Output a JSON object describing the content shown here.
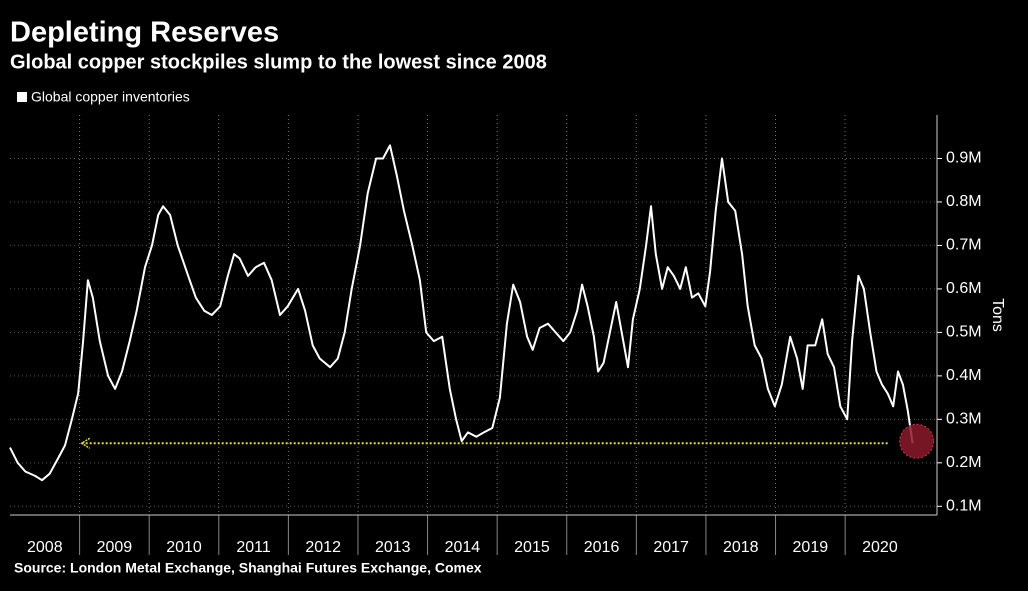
{
  "chart_data": {
    "type": "line",
    "title": "Depleting Reserves",
    "subtitle": "Global copper stockpiles slump to the lowest since 2008",
    "y_label": "Tons",
    "source": "Source: London Metal Exchange, Shanghai Futures Exchange, Comex",
    "xlim": [
      2008,
      2021.32
    ],
    "xticks": [
      {
        "value": 2008,
        "label": "2008"
      },
      {
        "value": 2009,
        "label": "2009"
      },
      {
        "value": 2010,
        "label": "2010"
      },
      {
        "value": 2011,
        "label": "2011"
      },
      {
        "value": 2012,
        "label": "2012"
      },
      {
        "value": 2013,
        "label": "2013"
      },
      {
        "value": 2014,
        "label": "2014"
      },
      {
        "value": 2015,
        "label": "2015"
      },
      {
        "value": 2016,
        "label": "2016"
      },
      {
        "value": 2017,
        "label": "2017"
      },
      {
        "value": 2018,
        "label": "2018"
      },
      {
        "value": 2019,
        "label": "2019"
      },
      {
        "value": 2020,
        "label": "2020"
      }
    ],
    "ylim": [
      80000,
      1000000
    ],
    "yticks": [
      {
        "value": 100000,
        "label": "0.1M"
      },
      {
        "value": 200000,
        "label": "0.2M"
      },
      {
        "value": 300000,
        "label": "0.3M"
      },
      {
        "value": 400000,
        "label": "0.4M"
      },
      {
        "value": 500000,
        "label": "0.5M"
      },
      {
        "value": 600000,
        "label": "0.6M"
      },
      {
        "value": 700000,
        "label": "0.7M"
      },
      {
        "value": 800000,
        "label": "0.8M"
      },
      {
        "value": 900000,
        "label": "0.9M"
      }
    ],
    "grid": true,
    "x": [
      2008.0,
      2008.11,
      2008.22,
      2008.36,
      2008.46,
      2008.57,
      2008.69,
      2008.79,
      2008.89,
      2008.98,
      2009.05,
      2009.12,
      2009.19,
      2009.29,
      2009.41,
      2009.51,
      2009.61,
      2009.72,
      2009.82,
      2009.94,
      2010.04,
      2010.13,
      2010.2,
      2010.3,
      2010.41,
      2010.56,
      2010.67,
      2010.79,
      2010.9,
      2011.02,
      2011.13,
      2011.22,
      2011.3,
      2011.42,
      2011.53,
      2011.65,
      2011.76,
      2011.88,
      2011.99,
      2012.14,
      2012.24,
      2012.35,
      2012.45,
      2012.6,
      2012.71,
      2012.81,
      2012.91,
      2013.03,
      2013.14,
      2013.26,
      2013.36,
      2013.46,
      2013.56,
      2013.66,
      2013.78,
      2013.89,
      2013.98,
      2014.09,
      2014.21,
      2014.32,
      2014.41,
      2014.49,
      2014.58,
      2014.7,
      2014.81,
      2014.93,
      2015.04,
      2015.14,
      2015.23,
      2015.33,
      2015.43,
      2015.51,
      2015.61,
      2015.73,
      2015.84,
      2015.95,
      2016.05,
      2016.15,
      2016.22,
      2016.3,
      2016.39,
      2016.45,
      2016.53,
      2016.62,
      2016.71,
      2016.79,
      2016.88,
      2016.95,
      2017.05,
      2017.14,
      2017.21,
      2017.28,
      2017.37,
      2017.45,
      2017.54,
      2017.63,
      2017.71,
      2017.8,
      2017.89,
      2017.99,
      2018.06,
      2018.14,
      2018.23,
      2018.32,
      2018.42,
      2018.52,
      2018.6,
      2018.7,
      2018.8,
      2018.89,
      2018.99,
      2019.09,
      2019.21,
      2019.31,
      2019.39,
      2019.46,
      2019.57,
      2019.67,
      2019.75,
      2019.84,
      2019.93,
      2020.03,
      2020.1,
      2020.19,
      2020.27,
      2020.36,
      2020.45,
      2020.53,
      2020.61,
      2020.69,
      2020.76,
      2020.83,
      2020.9,
      2020.97
    ],
    "series": [
      {
        "name": "Global copper inventories",
        "color": "#ffffff",
        "values": [
          235000,
          200000,
          180000,
          170000,
          160000,
          175000,
          210000,
          240000,
          300000,
          360000,
          480000,
          620000,
          580000,
          480000,
          400000,
          370000,
          410000,
          480000,
          550000,
          650000,
          700000,
          770000,
          790000,
          770000,
          700000,
          630000,
          580000,
          550000,
          540000,
          560000,
          630000,
          680000,
          670000,
          630000,
          650000,
          660000,
          620000,
          540000,
          560000,
          600000,
          550000,
          470000,
          440000,
          420000,
          440000,
          500000,
          600000,
          700000,
          820000,
          900000,
          900000,
          930000,
          860000,
          780000,
          700000,
          620000,
          500000,
          480000,
          490000,
          370000,
          300000,
          250000,
          270000,
          260000,
          270000,
          280000,
          350000,
          520000,
          610000,
          570000,
          490000,
          460000,
          510000,
          520000,
          500000,
          480000,
          500000,
          550000,
          610000,
          560000,
          490000,
          410000,
          430000,
          500000,
          570000,
          500000,
          420000,
          530000,
          600000,
          700000,
          790000,
          680000,
          600000,
          650000,
          630000,
          600000,
          650000,
          580000,
          590000,
          560000,
          640000,
          780000,
          900000,
          800000,
          780000,
          680000,
          560000,
          470000,
          440000,
          370000,
          330000,
          380000,
          490000,
          440000,
          370000,
          470000,
          470000,
          530000,
          450000,
          420000,
          330000,
          300000,
          480000,
          630000,
          600000,
          500000,
          410000,
          380000,
          360000,
          330000,
          410000,
          380000,
          320000,
          245000
        ]
      }
    ]
  }
}
